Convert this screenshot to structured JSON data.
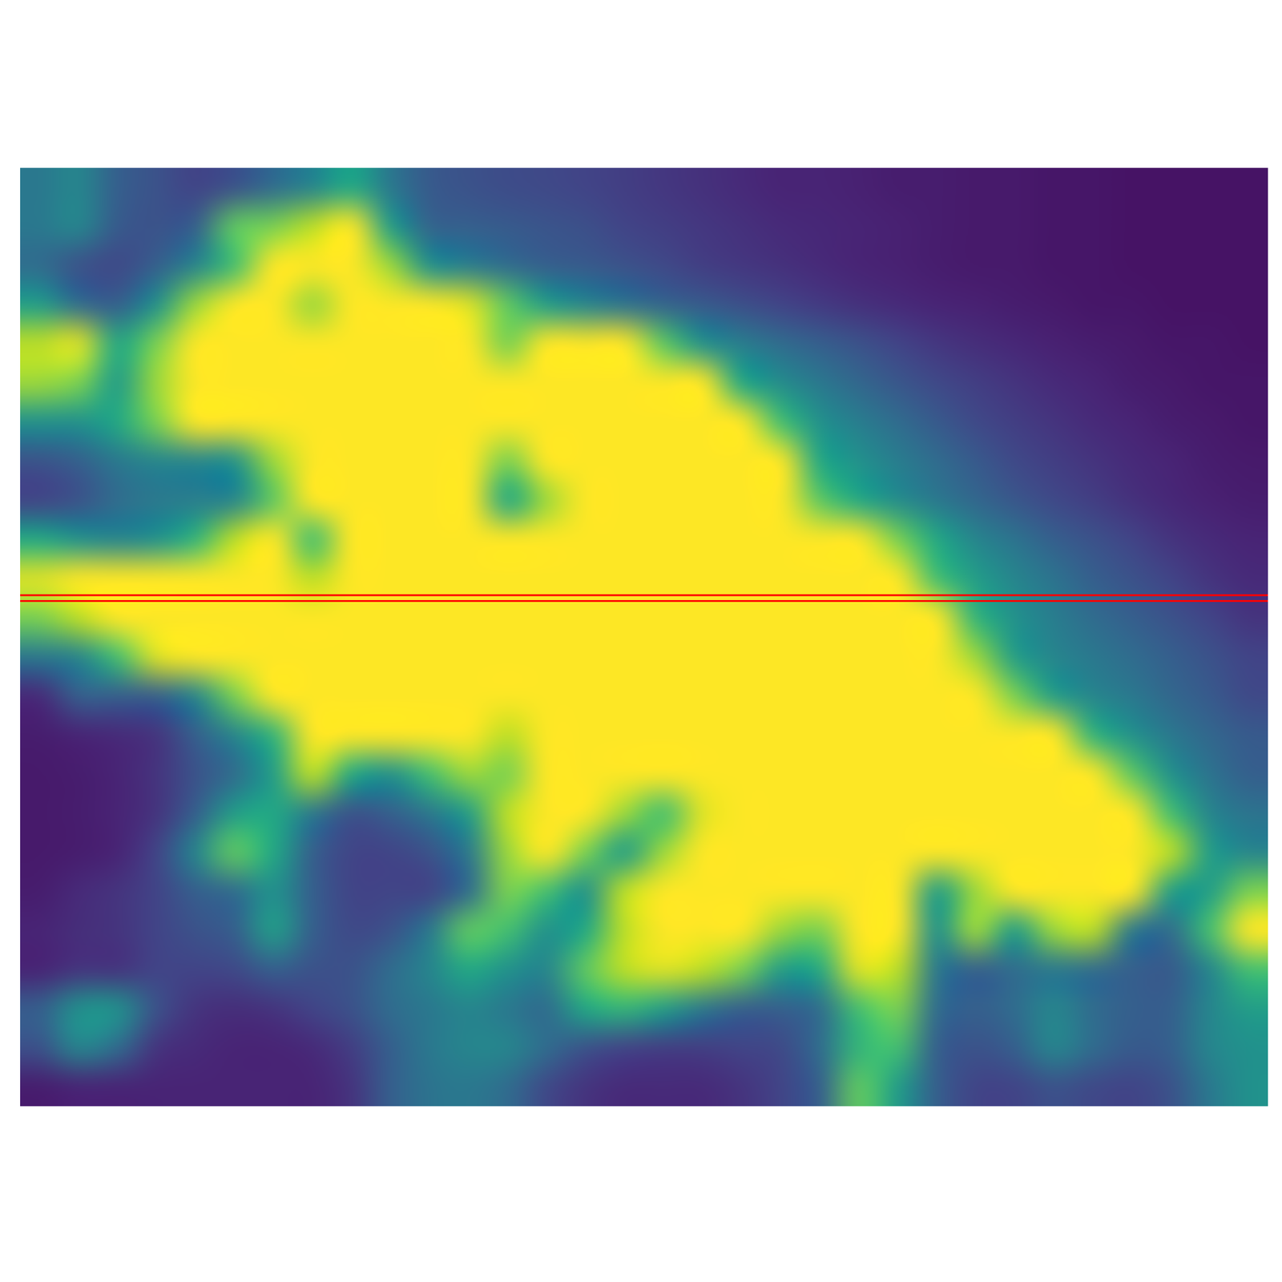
{
  "chart_data": {
    "type": "heatmap",
    "xlim": [
      0,
      32
    ],
    "ylim": [
      24,
      0
    ],
    "color_range": [
      0,
      1
    ],
    "tick_labels": false,
    "grid": false,
    "lines": [
      {
        "y": 10.93,
        "color": "#ff0000"
      },
      {
        "y": 11.08,
        "color": "#ff0000"
      }
    ],
    "cells": [
      [
        0.4,
        0.45,
        0.3,
        0.25,
        0.2,
        0.25,
        0.35,
        0.45,
        0.6,
        0.4,
        0.28,
        0.25,
        0.23,
        0.22,
        0.2,
        0.18,
        0.16,
        0.14,
        0.12,
        0.1,
        0.1,
        0.09,
        0.08,
        0.08,
        0.07,
        0.07,
        0.06,
        0.06,
        0.05,
        0.05,
        0.05,
        0.05
      ],
      [
        0.4,
        0.45,
        0.28,
        0.25,
        0.3,
        0.75,
        0.8,
        0.9,
        1,
        0.55,
        0.32,
        0.3,
        0.28,
        0.26,
        0.24,
        0.2,
        0.18,
        0.16,
        0.14,
        0.12,
        0.11,
        0.1,
        0.09,
        0.08,
        0.07,
        0.07,
        0.06,
        0.06,
        0.05,
        0.05,
        0.05,
        0.05
      ],
      [
        0.35,
        0.25,
        0.22,
        0.3,
        0.45,
        0.7,
        1,
        1,
        1,
        0.85,
        0.5,
        0.42,
        0.35,
        0.3,
        0.28,
        0.25,
        0.22,
        0.18,
        0.16,
        0.14,
        0.12,
        0.1,
        0.09,
        0.08,
        0.07,
        0.07,
        0.06,
        0.06,
        0.05,
        0.05,
        0.05,
        0.05
      ],
      [
        0.55,
        0.35,
        0.3,
        0.5,
        0.85,
        1,
        1,
        0.85,
        1,
        1,
        1,
        0.95,
        0.75,
        0.55,
        0.45,
        0.38,
        0.32,
        0.28,
        0.24,
        0.2,
        0.17,
        0.14,
        0.12,
        0.1,
        0.09,
        0.08,
        0.07,
        0.06,
        0.06,
        0.05,
        0.05,
        0.05
      ],
      [
        0.9,
        0.95,
        0.6,
        0.8,
        1,
        1,
        1,
        1,
        1,
        1,
        1,
        1,
        0.8,
        1,
        1,
        1,
        0.75,
        0.5,
        0.42,
        0.35,
        0.3,
        0.25,
        0.2,
        0.16,
        0.13,
        0.11,
        0.09,
        0.08,
        0.07,
        0.06,
        0.06,
        0.05
      ],
      [
        0.85,
        0.8,
        0.55,
        0.85,
        1,
        1,
        1,
        1,
        1,
        1,
        1,
        1,
        1,
        1,
        1,
        1,
        1,
        1,
        0.6,
        0.48,
        0.4,
        0.33,
        0.27,
        0.22,
        0.18,
        0.15,
        0.12,
        0.1,
        0.08,
        0.07,
        0.06,
        0.06
      ],
      [
        0.5,
        0.5,
        0.6,
        0.8,
        1,
        1,
        1,
        1,
        1,
        1,
        1,
        1,
        1,
        1,
        1,
        1,
        1,
        1,
        1,
        0.7,
        0.5,
        0.42,
        0.35,
        0.28,
        0.22,
        0.18,
        0.15,
        0.12,
        0.1,
        0.08,
        0.07,
        0.06
      ],
      [
        0.25,
        0.3,
        0.4,
        0.45,
        0.45,
        0.5,
        0.85,
        1,
        1,
        1,
        1,
        1,
        0.8,
        1,
        1,
        1,
        1,
        1,
        1,
        1,
        0.6,
        0.5,
        0.42,
        0.35,
        0.28,
        0.22,
        0.18,
        0.15,
        0.12,
        0.1,
        0.08,
        0.07
      ],
      [
        0.2,
        0.25,
        0.35,
        0.4,
        0.42,
        0.45,
        0.75,
        1,
        1,
        1,
        1,
        1,
        0.6,
        0.85,
        1,
        1,
        1,
        1,
        1,
        1,
        0.75,
        0.6,
        0.48,
        0.4,
        0.33,
        0.27,
        0.22,
        0.18,
        0.14,
        0.11,
        0.09,
        0.08
      ],
      [
        0.6,
        0.5,
        0.45,
        0.5,
        0.65,
        0.9,
        1,
        0.7,
        1,
        1,
        1,
        1,
        1,
        1,
        1,
        1,
        1,
        1,
        1,
        1,
        1,
        1,
        0.8,
        0.6,
        0.45,
        0.38,
        0.3,
        0.25,
        0.2,
        0.15,
        0.12,
        0.1
      ],
      [
        0.95,
        1,
        1,
        1,
        1,
        1,
        1,
        0.9,
        1,
        1,
        1,
        1,
        1,
        1,
        1,
        1,
        1,
        1,
        1,
        1,
        1,
        1,
        1,
        0.7,
        0.55,
        0.45,
        0.38,
        0.3,
        0.25,
        0.2,
        0.15,
        0.12
      ],
      [
        0.8,
        0.9,
        1,
        1,
        1,
        1,
        1,
        1,
        1,
        1,
        1,
        1,
        1,
        1,
        1,
        1,
        1,
        1,
        1,
        1,
        1,
        1,
        1,
        1,
        0.65,
        0.5,
        0.42,
        0.35,
        0.3,
        0.25,
        0.2,
        0.15
      ],
      [
        0.4,
        0.45,
        0.7,
        0.95,
        1,
        1,
        1,
        1,
        1,
        1,
        1,
        1,
        1,
        1,
        1,
        1,
        1,
        1,
        1,
        1,
        1,
        1,
        1,
        1,
        0.85,
        0.55,
        0.45,
        0.4,
        0.35,
        0.3,
        0.25,
        0.2
      ],
      [
        0.12,
        0.3,
        0.3,
        0.3,
        0.45,
        0.8,
        1,
        1,
        1,
        1,
        1,
        1,
        1,
        1,
        1,
        1,
        1,
        1,
        1,
        1,
        1,
        1,
        1,
        1,
        1,
        0.8,
        0.55,
        0.45,
        0.4,
        0.33,
        0.28,
        0.22
      ],
      [
        0.08,
        0.1,
        0.12,
        0.15,
        0.3,
        0.45,
        0.65,
        1,
        1,
        1,
        1,
        1,
        0.9,
        1,
        1,
        1,
        1,
        1,
        1,
        1,
        1,
        1,
        1,
        1,
        1,
        1,
        1,
        0.65,
        0.5,
        0.4,
        0.33,
        0.28
      ],
      [
        0.07,
        0.08,
        0.1,
        0.15,
        0.25,
        0.35,
        0.55,
        0.9,
        0.6,
        0.5,
        0.7,
        0.85,
        0.8,
        1,
        1,
        1,
        1,
        1,
        1,
        1,
        1,
        1,
        1,
        1,
        1,
        1,
        1,
        1,
        0.75,
        0.5,
        0.38,
        0.3
      ],
      [
        0.07,
        0.08,
        0.1,
        0.15,
        0.3,
        0.55,
        0.6,
        0.4,
        0.25,
        0.3,
        0.4,
        0.55,
        0.9,
        1,
        1,
        0.85,
        0.7,
        0.95,
        1,
        1,
        1,
        1,
        1,
        1,
        1,
        1,
        1,
        1,
        1,
        0.7,
        0.45,
        0.38
      ],
      [
        0.07,
        0.08,
        0.1,
        0.2,
        0.45,
        0.75,
        0.6,
        0.3,
        0.2,
        0.2,
        0.25,
        0.4,
        0.85,
        1,
        0.8,
        0.55,
        0.85,
        1,
        1,
        1,
        1,
        1,
        1,
        1,
        1,
        1,
        1,
        1,
        1,
        0.9,
        0.55,
        0.45
      ],
      [
        0.08,
        0.12,
        0.15,
        0.2,
        0.3,
        0.35,
        0.5,
        0.3,
        0.2,
        0.2,
        0.2,
        0.35,
        0.8,
        0.7,
        0.5,
        0.9,
        1,
        1,
        1,
        1,
        1,
        1,
        1,
        0.55,
        0.85,
        1,
        1,
        1,
        1,
        0.55,
        0.55,
        0.8
      ],
      [
        0.1,
        0.13,
        0.15,
        0.2,
        0.25,
        0.3,
        0.55,
        0.3,
        0.22,
        0.25,
        0.4,
        0.75,
        0.7,
        0.5,
        0.6,
        0.9,
        1,
        1,
        1,
        0.85,
        0.8,
        1,
        1,
        0.5,
        0.85,
        0.55,
        0.85,
        0.9,
        0.4,
        0.35,
        0.7,
        1
      ],
      [
        0.1,
        0.15,
        0.15,
        0.2,
        0.2,
        0.22,
        0.3,
        0.25,
        0.25,
        0.35,
        0.45,
        0.6,
        0.5,
        0.45,
        0.75,
        0.9,
        0.95,
        0.9,
        0.8,
        0.55,
        0.6,
        0.95,
        0.9,
        0.4,
        0.3,
        0.35,
        0.4,
        0.35,
        0.3,
        0.28,
        0.45,
        0.7
      ],
      [
        0.3,
        0.5,
        0.5,
        0.25,
        0.15,
        0.13,
        0.15,
        0.2,
        0.25,
        0.35,
        0.4,
        0.45,
        0.4,
        0.35,
        0.6,
        0.65,
        0.55,
        0.4,
        0.3,
        0.3,
        0.35,
        0.7,
        0.8,
        0.35,
        0.3,
        0.35,
        0.45,
        0.35,
        0.3,
        0.3,
        0.45,
        0.55
      ],
      [
        0.25,
        0.45,
        0.35,
        0.15,
        0.12,
        0.1,
        0.1,
        0.12,
        0.18,
        0.3,
        0.4,
        0.45,
        0.45,
        0.35,
        0.25,
        0.2,
        0.18,
        0.18,
        0.2,
        0.22,
        0.35,
        0.65,
        0.7,
        0.3,
        0.25,
        0.3,
        0.45,
        0.35,
        0.28,
        0.3,
        0.45,
        0.5
      ],
      [
        0.08,
        0.1,
        0.1,
        0.1,
        0.1,
        0.1,
        0.1,
        0.1,
        0.15,
        0.3,
        0.38,
        0.4,
        0.35,
        0.22,
        0.15,
        0.12,
        0.12,
        0.12,
        0.15,
        0.2,
        0.3,
        0.75,
        0.55,
        0.3,
        0.2,
        0.2,
        0.25,
        0.22,
        0.2,
        0.25,
        0.4,
        0.5
      ]
    ]
  }
}
